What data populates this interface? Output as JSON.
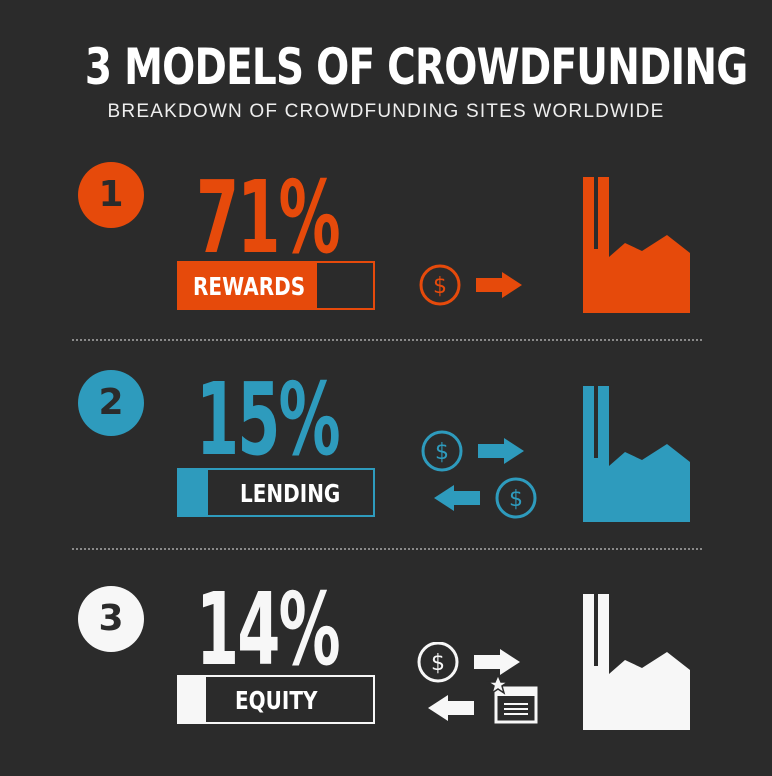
{
  "title": "3 MODELS OF CROWDFUNDING",
  "subtitle": "BREAKDOWN OF CROWDFUNDING SITES WORLDWIDE",
  "chart_data": {
    "type": "bar",
    "categories": [
      "REWARDS",
      "LENDING",
      "EQUITY"
    ],
    "values": [
      71,
      15,
      14
    ],
    "unit": "%",
    "ylim": [
      0,
      100
    ]
  },
  "rows": [
    {
      "number": "1",
      "percent": "71%",
      "label": "REWARDS",
      "value": 71,
      "color": "#e64a0b",
      "number_text_color": "#2b2b2b",
      "label_color": "#ffffff",
      "dollar_symbol": "$"
    },
    {
      "number": "2",
      "percent": "15%",
      "label": "LENDING",
      "value": 15,
      "color": "#2e9bbd",
      "number_text_color": "#2b2b2b",
      "label_color": "#ffffff",
      "dollar_symbol": "$"
    },
    {
      "number": "3",
      "percent": "14%",
      "label": "EQUITY",
      "value": 14,
      "color": "#f7f7f7",
      "number_text_color": "#2b2b2b",
      "label_color": "#ffffff",
      "dollar_symbol": "$"
    }
  ]
}
